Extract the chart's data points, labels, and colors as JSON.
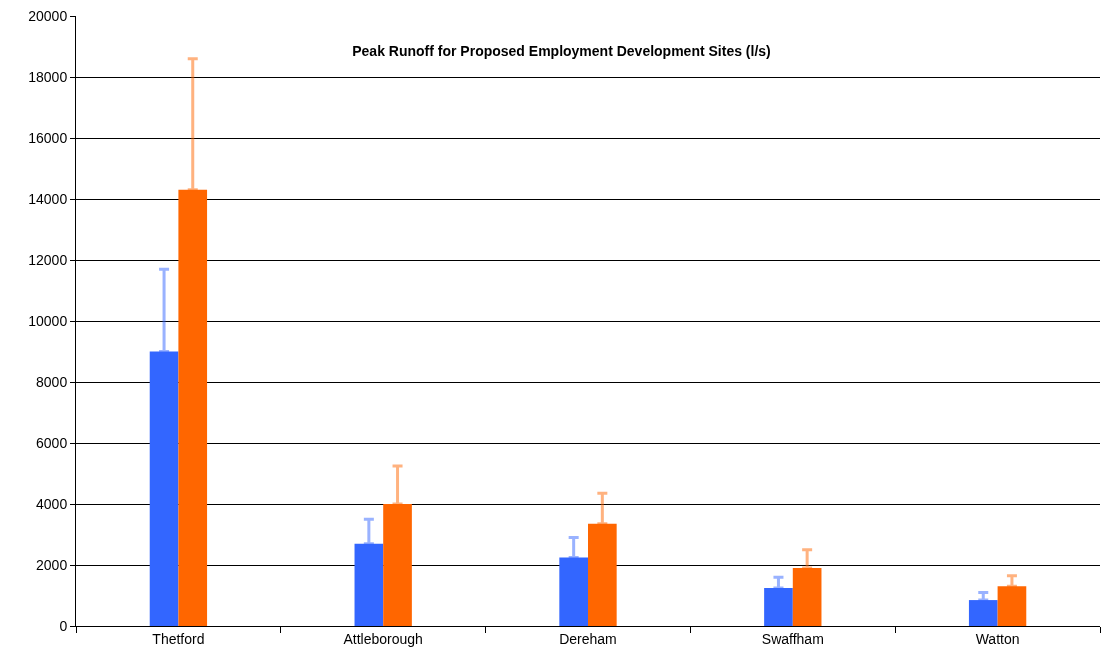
{
  "chart_data": {
    "type": "bar",
    "title": "Peak Runoff for Proposed Employment Development Sites (l/s)",
    "categories": [
      "Thetford",
      "Attleborough",
      "Dereham",
      "Swaffham",
      "Watton"
    ],
    "series": [
      {
        "color": "#3366ff",
        "values": [
          9000,
          2700,
          2250,
          1250,
          850
        ],
        "errors": [
          [
            9000,
            11700
          ],
          [
            2700,
            3500
          ],
          [
            2250,
            2900
          ],
          [
            1250,
            1600
          ],
          [
            850,
            1100
          ]
        ]
      },
      {
        "color": "#ff6600",
        "values": [
          14300,
          4000,
          3350,
          1900,
          1300
        ],
        "errors": [
          [
            14300,
            18600
          ],
          [
            4000,
            5250
          ],
          [
            3350,
            4350
          ],
          [
            1900,
            2500
          ],
          [
            1300,
            1650
          ]
        ]
      }
    ],
    "ylim": [
      0,
      20000
    ],
    "yticks": [
      0,
      2000,
      4000,
      6000,
      8000,
      10000,
      12000,
      14000,
      16000,
      18000,
      20000
    ],
    "grid": "y"
  }
}
